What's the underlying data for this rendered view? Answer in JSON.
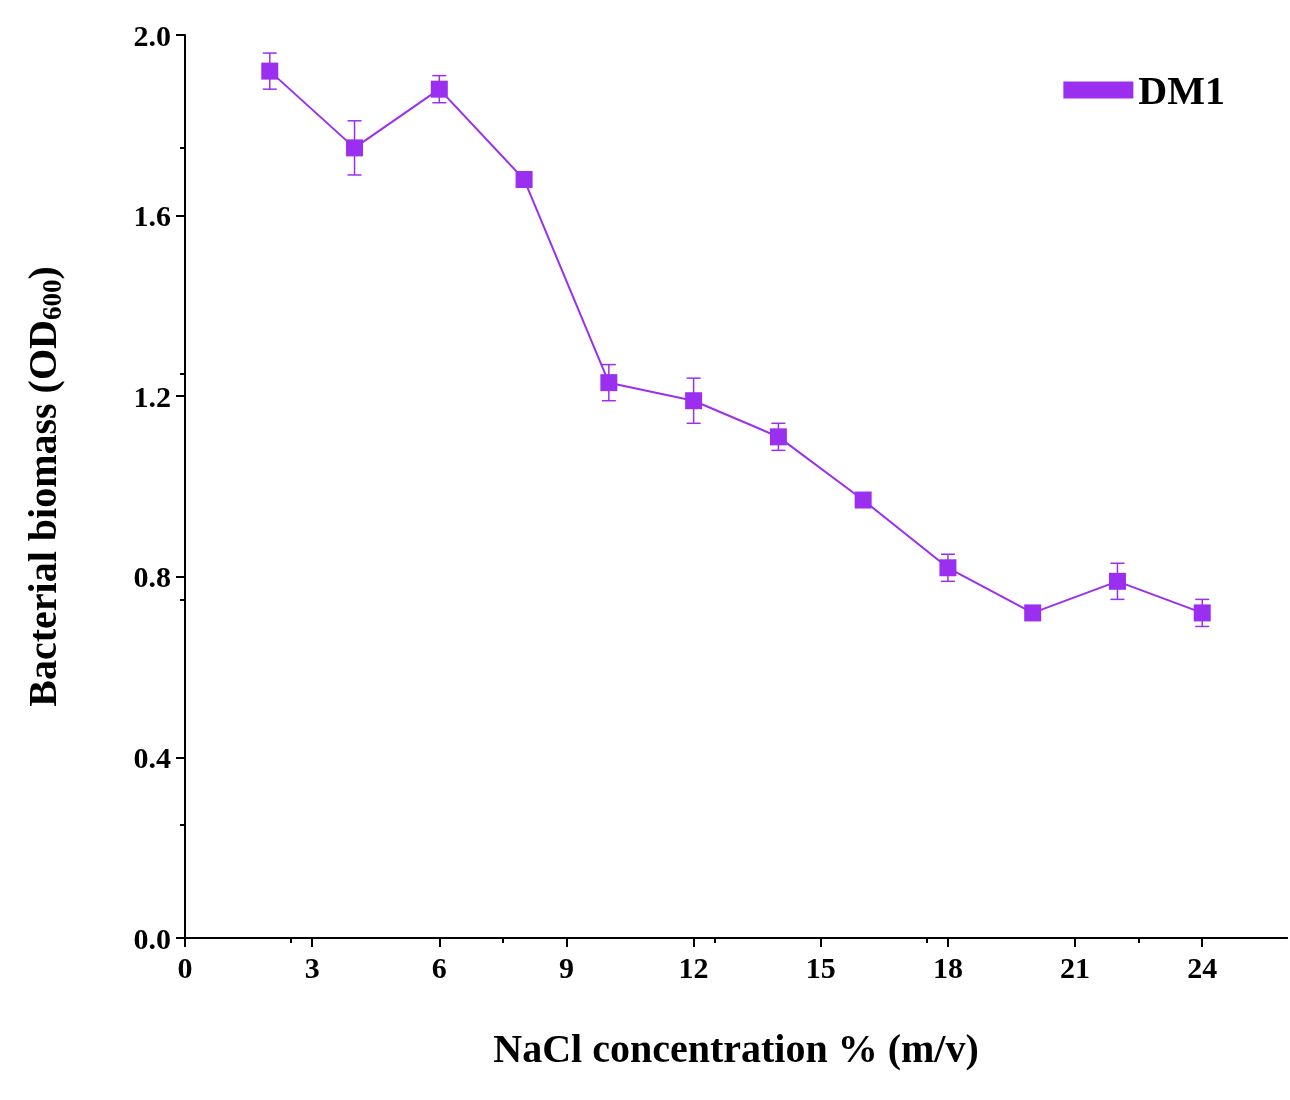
{
  "chart_data": {
    "type": "line",
    "xlabel": "NaCl concentration % (m/v)",
    "ylabel": "Bacterial biomass (OD$_{600}$)",
    "x": [
      2,
      4,
      6,
      8,
      10,
      12,
      14,
      16,
      18,
      20,
      22,
      24
    ],
    "series": [
      {
        "name": "DM1",
        "color": "#9b2ff0",
        "values": [
          1.92,
          1.75,
          1.88,
          1.68,
          1.23,
          1.19,
          1.11,
          0.97,
          0.82,
          0.72,
          0.79,
          0.72
        ],
        "errors": [
          0.04,
          0.06,
          0.03,
          0.01,
          0.04,
          0.05,
          0.03,
          0.01,
          0.03,
          0.01,
          0.04,
          0.03
        ]
      }
    ],
    "xlim": [
      0,
      26
    ],
    "xticks": [
      0,
      3,
      6,
      9,
      12,
      15,
      18,
      21,
      24
    ],
    "ylim": [
      0,
      2.0
    ],
    "yticks": [
      {
        "value": 0,
        "label": "0.0"
      },
      {
        "value": 0.4,
        "label": "0.4"
      },
      {
        "value": 0.8,
        "label": "0.8"
      },
      {
        "value": 1.2,
        "label": "1.2"
      },
      {
        "value": 1.6,
        "label": "1.6"
      },
      {
        "value": 2.0,
        "label": "2.0"
      }
    ],
    "marker": "square",
    "line_style": "solid",
    "legend": "top right",
    "grid": false
  }
}
